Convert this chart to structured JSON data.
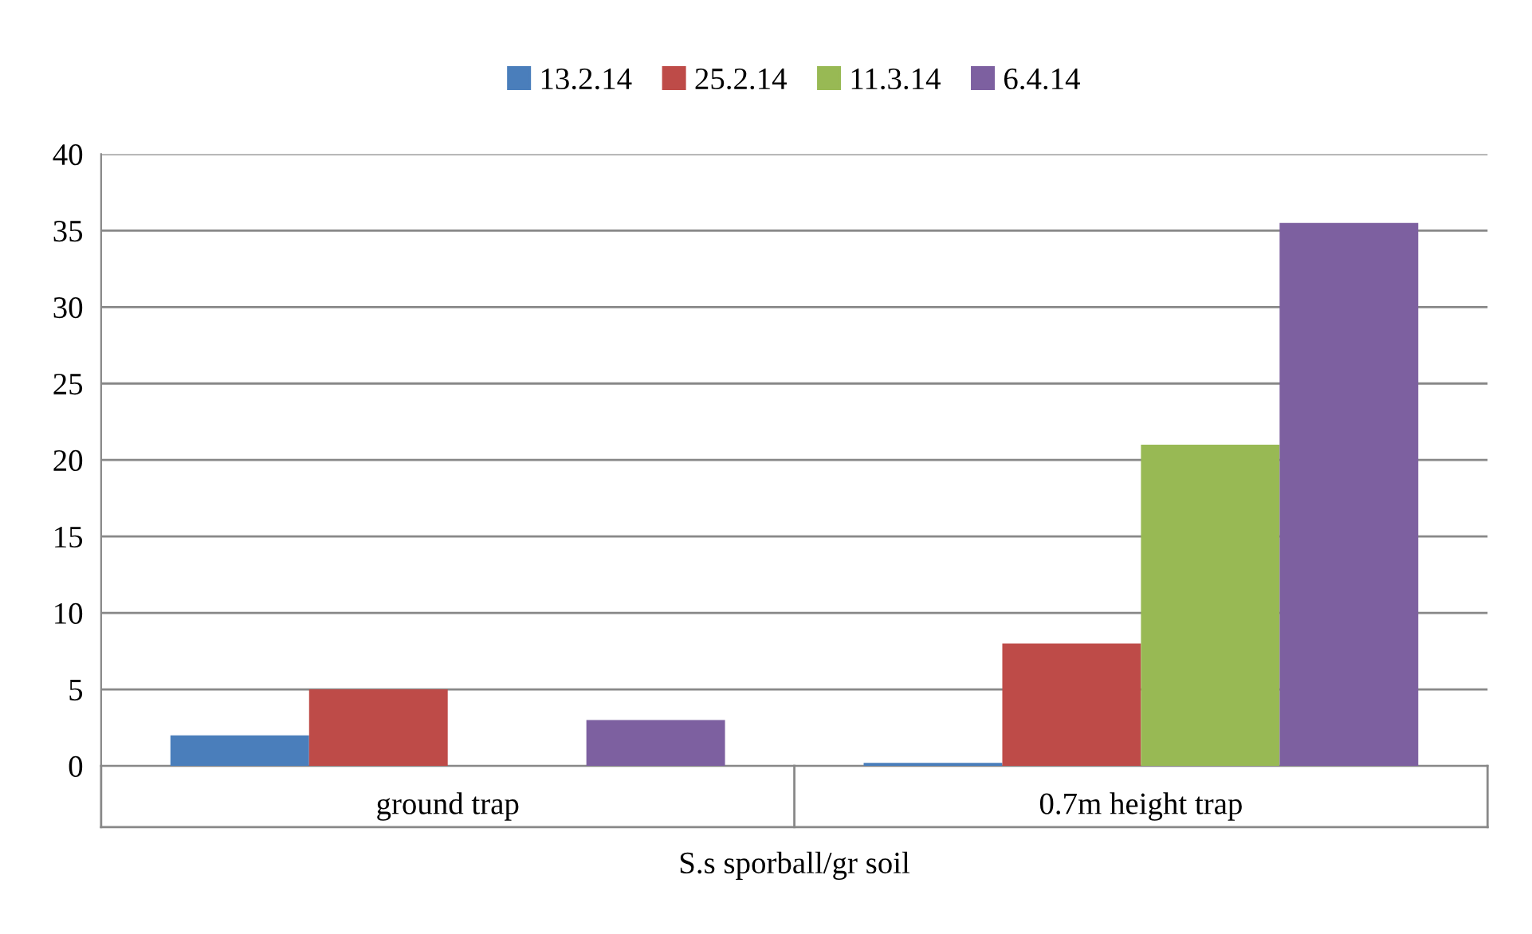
{
  "chart_data": {
    "type": "bar",
    "categories": [
      "ground trap",
      "0.7m height trap"
    ],
    "xlabel": "S.s sporball/gr soil",
    "series": [
      {
        "name": "13.2.14",
        "color": "#4a7ebb",
        "values": [
          2,
          0.2
        ]
      },
      {
        "name": "25.2.14",
        "color": "#be4b48",
        "values": [
          5,
          8
        ]
      },
      {
        "name": "11.3.14",
        "color": "#98b954",
        "values": [
          0,
          21
        ]
      },
      {
        "name": "6.4.14",
        "color": "#7d60a0",
        "values": [
          3,
          35.5
        ]
      }
    ],
    "ylim": [
      0,
      40
    ],
    "yticks": [
      0,
      5,
      10,
      15,
      20,
      25,
      30,
      35,
      40
    ],
    "grid": "y",
    "legend": "top"
  }
}
